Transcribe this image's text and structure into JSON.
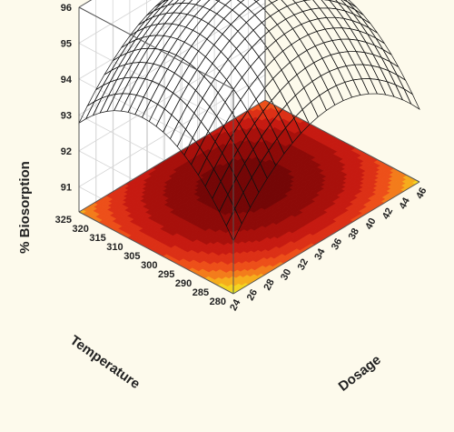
{
  "chart_data": {
    "type": "surface3d",
    "title": "",
    "xlabel": "Dosage",
    "ylabel": "Temperature",
    "zlabel": "% Biosorption",
    "x_range": [
      24,
      46
    ],
    "y_range": [
      280,
      325
    ],
    "z_range": [
      90.3,
      96
    ],
    "x_ticks": [
      "24",
      "26",
      "28",
      "30",
      "32",
      "34",
      "36",
      "38",
      "40",
      "42",
      "44",
      "46"
    ],
    "y_ticks": [
      "280",
      "285",
      "290",
      "295",
      "300",
      "305",
      "310",
      "315",
      "320",
      "325"
    ],
    "z_ticks": [
      "91",
      "92",
      "93",
      "94",
      "95",
      "96"
    ],
    "surface": {
      "optimum_x": 35,
      "optimum_y": 302.5,
      "peak_z": 95.9,
      "corner_values": [
        {
          "x": 24,
          "y": 280,
          "z": 90.4
        },
        {
          "x": 46,
          "y": 280,
          "z": 91.4
        },
        {
          "x": 46,
          "y": 325,
          "z": 92.9
        },
        {
          "x": 24,
          "y": 325,
          "z": 92.7
        }
      ]
    },
    "colormap": [
      "#2bbf1f",
      "#a4d92b",
      "#f2ee24",
      "#f6a91c",
      "#f0561a",
      "#d41f14",
      "#a00d0a",
      "#740606"
    ],
    "grid": true,
    "contour_projection": true
  }
}
